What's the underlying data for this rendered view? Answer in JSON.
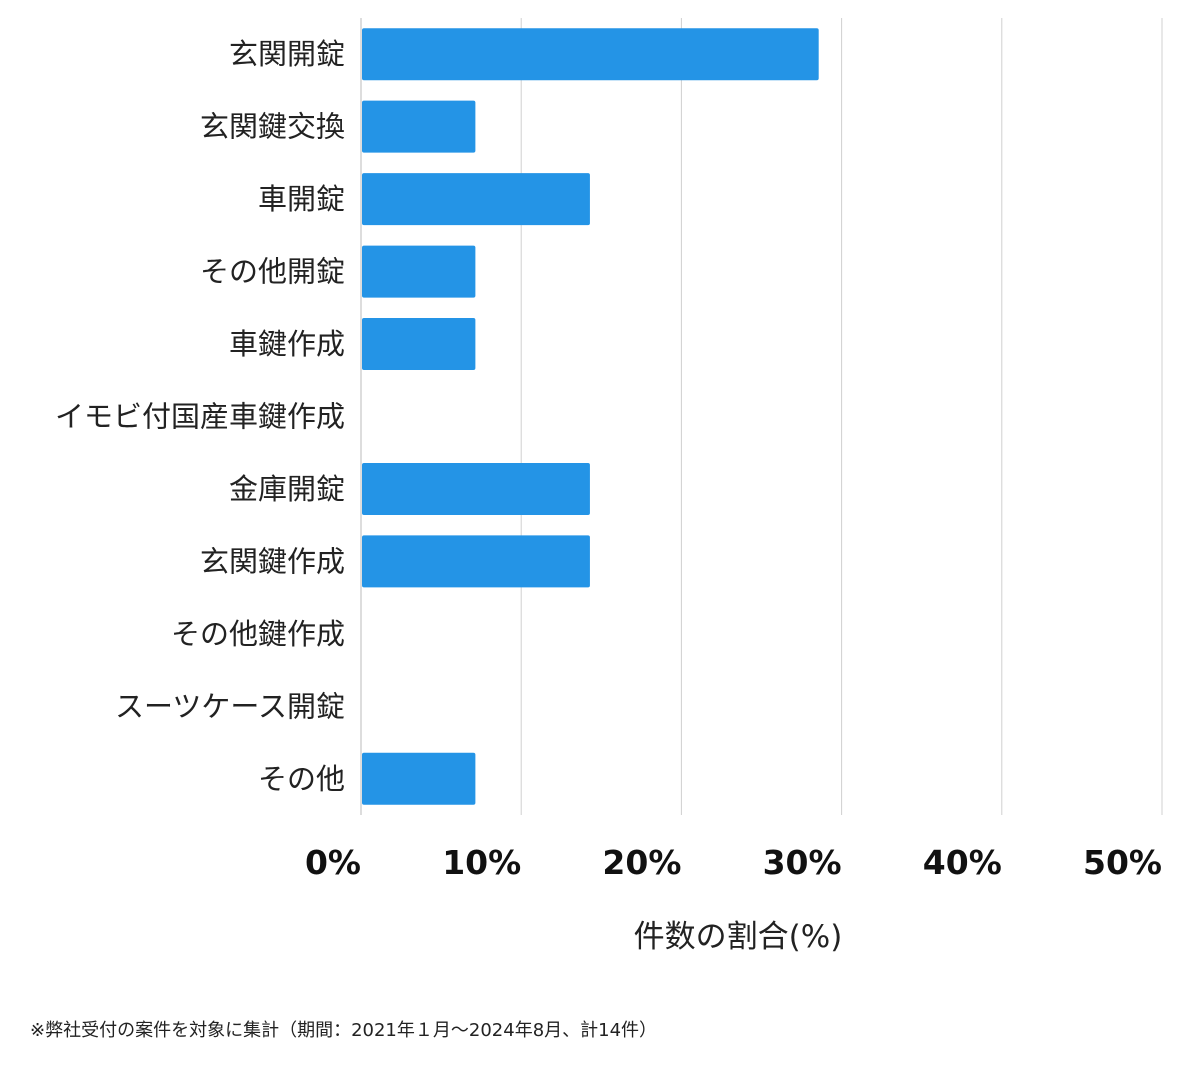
{
  "chart_data": {
    "type": "bar",
    "orientation": "horizontal",
    "categories": [
      "玄関開錠",
      "玄関鍵交換",
      "車開錠",
      "その他開錠",
      "車鍵作成",
      "イモビ付国産車鍵作成",
      "金庫開錠",
      "玄関鍵作成",
      "その他鍵作成",
      "スーツケース開錠",
      "その他"
    ],
    "values": [
      28.57,
      7.14,
      14.29,
      7.14,
      7.14,
      0,
      14.29,
      14.29,
      0,
      0,
      7.14
    ],
    "xlabel": "件数の割合(%)",
    "ylabel": "",
    "xlim": [
      0,
      50
    ],
    "xticks": [
      0,
      10,
      20,
      30,
      40,
      50
    ],
    "xtick_labels": [
      "0%",
      "10%",
      "20%",
      "30%",
      "40%",
      "50%"
    ],
    "grid": true,
    "bar_color": "#2494e6",
    "grid_color": "#d0d0d0"
  },
  "footnote": "※弊社受付の案件を対象に集計（期間：2021年１月〜2024年8月、計14件）"
}
